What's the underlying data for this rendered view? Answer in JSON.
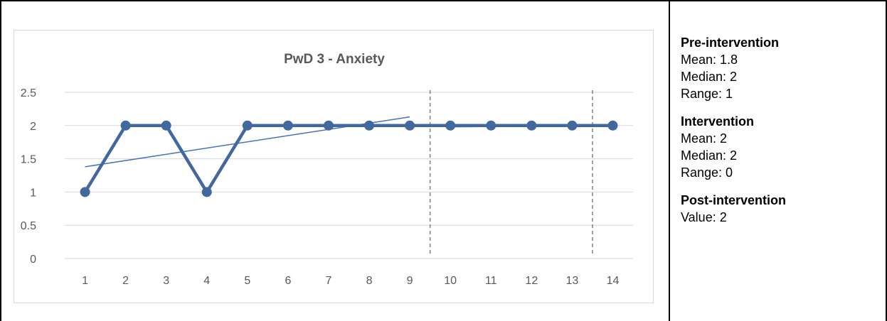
{
  "stats": {
    "pre": {
      "heading": "Pre-intervention",
      "mean": "Mean: 1.8",
      "median": "Median: 2",
      "range": "Range: 1"
    },
    "intervention": {
      "heading": "Intervention",
      "mean": "Mean: 2",
      "median": "Median: 2",
      "range": "Range: 0"
    },
    "post": {
      "heading": "Post-intervention",
      "value": "Value: 2"
    }
  },
  "colors": {
    "series": "#41699f",
    "trend": "#4472c4",
    "grid": "#d9d9d9",
    "text": "#595959",
    "phase_line": "#7f7f7f"
  },
  "chart_data": {
    "type": "line",
    "title": "PwD 3 - Anxiety",
    "xlabel": "",
    "ylabel": "",
    "categories": [
      "1",
      "2",
      "3",
      "4",
      "5",
      "6",
      "7",
      "8",
      "9",
      "10",
      "11",
      "12",
      "13",
      "14"
    ],
    "series": [
      {
        "values": [
          1,
          2,
          2,
          1,
          2,
          2,
          2,
          2,
          2,
          2,
          2,
          2,
          2,
          2
        ]
      }
    ],
    "trendlines": [
      {
        "x_start": 1,
        "y_start": 1.38,
        "x_end": 9,
        "y_end": 2.13
      },
      {
        "x_start": 10,
        "y_start": 1.98,
        "x_end": 14,
        "y_end": 2.0
      }
    ],
    "phase_change_lines": [
      9.5,
      13.5
    ],
    "yticks": [
      "0",
      "0.5",
      "1",
      "1.5",
      "2",
      "2.5"
    ],
    "ylim": [
      0,
      2.5
    ],
    "grid": "horizontal",
    "legend": "none"
  }
}
